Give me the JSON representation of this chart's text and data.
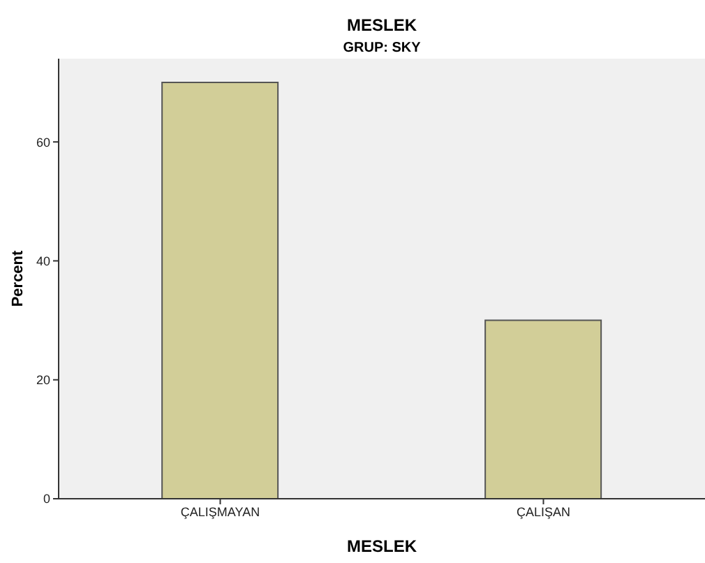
{
  "chart_data": {
    "type": "bar",
    "title": "MESLEK",
    "subtitle": "GRUP: SKY",
    "xlabel": "MESLEK",
    "ylabel": "Percent",
    "categories": [
      "ÇALIŞMAYAN",
      "ÇALIŞAN"
    ],
    "values": [
      70,
      30
    ],
    "color": "#d2ce98",
    "ylim": [
      0,
      74
    ],
    "yticks": [
      0,
      20,
      40,
      60
    ],
    "grid": false
  }
}
